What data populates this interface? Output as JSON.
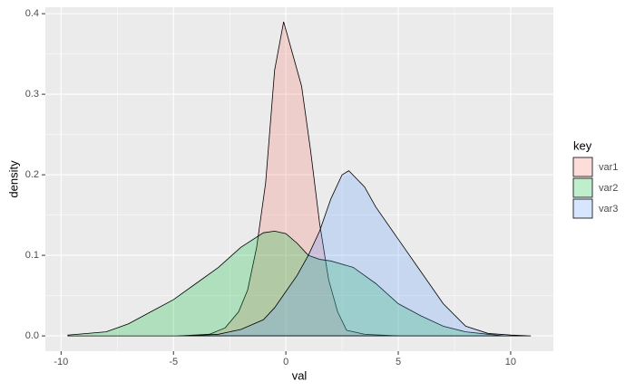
{
  "chart_data": {
    "type": "area",
    "x_label": "val",
    "y_label": "density",
    "xlim": [
      -10.7,
      11.9
    ],
    "ylim": [
      -0.019,
      0.408
    ],
    "xticks": [
      -10,
      -5,
      0,
      5,
      10
    ],
    "yticks": [
      {
        "value": 0,
        "label": "0.0"
      },
      0.1,
      0.2,
      0.3,
      0.4
    ],
    "x_minor": [
      -7.5,
      -2.5,
      2.5,
      7.5
    ],
    "y_minor": [
      0.05,
      0.15,
      0.25,
      0.35
    ],
    "grid": true,
    "legend_title": "key",
    "legend_position": "right",
    "opacity": 0.25,
    "series": [
      {
        "name": "var1",
        "color": "#F8766D",
        "x": [
          -4.8,
          -3.4,
          -2.7,
          -2.1,
          -1.7,
          -1.3,
          -0.9,
          -0.5,
          -0.1,
          0.3,
          0.7,
          1.1,
          1.5,
          1.9,
          2.3,
          2.7,
          3.5,
          5.0
        ],
        "values": [
          0,
          0.002,
          0.01,
          0.03,
          0.057,
          0.11,
          0.19,
          0.33,
          0.39,
          0.35,
          0.31,
          0.23,
          0.14,
          0.07,
          0.03,
          0.007,
          0.002,
          0
        ]
      },
      {
        "name": "var2",
        "color": "#00BA38",
        "x": [
          -9.7,
          -8,
          -7,
          -6,
          -5,
          -4,
          -3,
          -2,
          -1,
          -0.5,
          0,
          0.5,
          1,
          1.5,
          2,
          3,
          4,
          5,
          6,
          7,
          8,
          9,
          9.7
        ],
        "values": [
          0.001,
          0.005,
          0.015,
          0.03,
          0.045,
          0.065,
          0.085,
          0.11,
          0.128,
          0.13,
          0.127,
          0.115,
          0.1,
          0.095,
          0.093,
          0.085,
          0.065,
          0.04,
          0.025,
          0.012,
          0.005,
          0.002,
          0
        ]
      },
      {
        "name": "var3",
        "color": "#619CFF",
        "x": [
          -4.5,
          -3,
          -2,
          -1,
          -0.5,
          0,
          0.5,
          1,
          1.5,
          2,
          2.5,
          2.8,
          3.5,
          4,
          5,
          6,
          7,
          8,
          9,
          10,
          10.9
        ],
        "values": [
          0,
          0.002,
          0.008,
          0.02,
          0.035,
          0.055,
          0.075,
          0.1,
          0.13,
          0.17,
          0.2,
          0.205,
          0.185,
          0.16,
          0.12,
          0.08,
          0.04,
          0.012,
          0.003,
          0.001,
          0
        ]
      }
    ]
  }
}
